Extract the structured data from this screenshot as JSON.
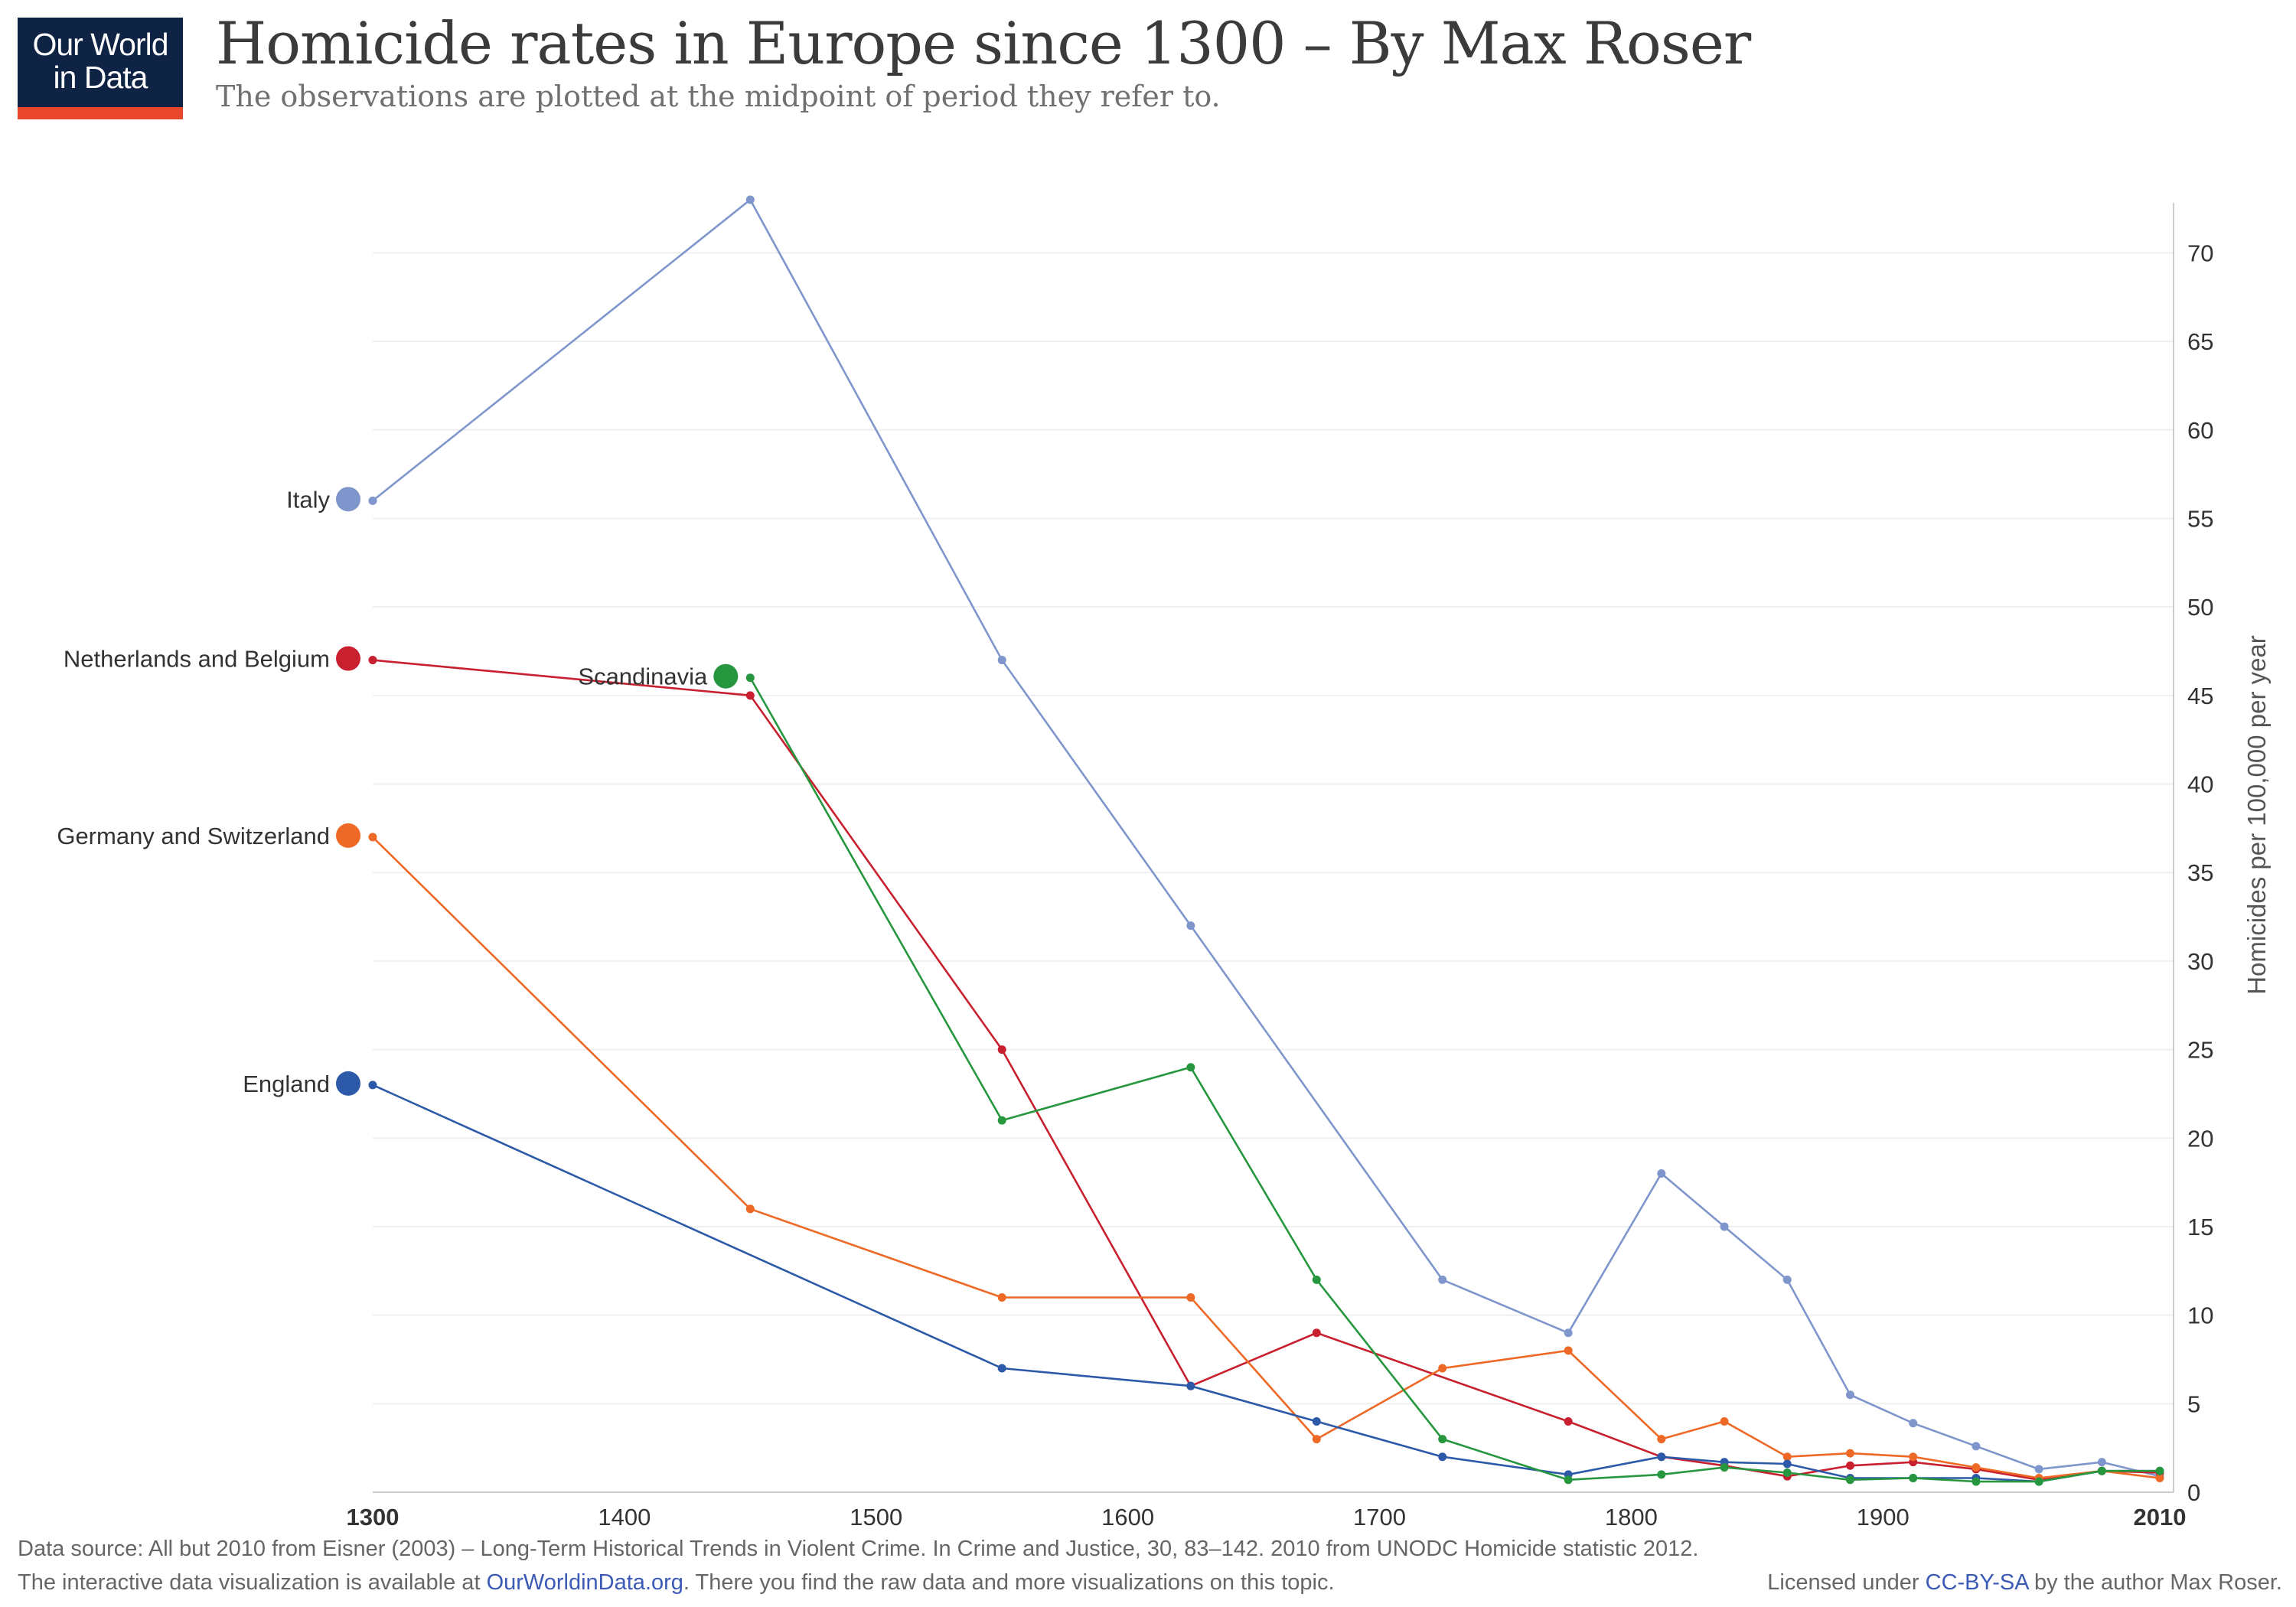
{
  "logo": {
    "line1": "Our World",
    "line2": "in Data"
  },
  "title": "Homicide rates in Europe since 1300 – By Max Roser",
  "subtitle": "The observations are plotted at the midpoint of period they refer to.",
  "footer": {
    "source": "Data source: All but 2010 from Eisner (2003) – Long-Term Historical Trends in Violent Crime. In Crime and Justice, 30, 83–142. 2010 from UNODC Homicide statistic 2012.",
    "line2_pre": "The interactive data visualization is available at ",
    "line2_link": "OurWorldinData.org",
    "line2_post": ". There you find the raw data and more visualizations on this topic.",
    "license_pre": "Licensed under ",
    "license_link": "CC-BY-SA",
    "license_post": " by the author Max Roser."
  },
  "chart_data": {
    "type": "line",
    "title": "Homicide rates in Europe since 1300 – By Max Roser",
    "ylabel": "Homicides per 100,000 per year",
    "xlabel": "",
    "xlim": [
      1300,
      2010
    ],
    "ylim": [
      0,
      73
    ],
    "x_ticks": [
      1300,
      1400,
      1500,
      1600,
      1700,
      1800,
      1900,
      2010
    ],
    "y_ticks": [
      0,
      5,
      10,
      15,
      20,
      25,
      30,
      35,
      40,
      45,
      50,
      55,
      60,
      65,
      70
    ],
    "grid": true,
    "legend": "left",
    "series": [
      {
        "name": "Italy",
        "color": "#7f96cc",
        "points": [
          [
            1300,
            56
          ],
          [
            1450,
            73
          ],
          [
            1550,
            47
          ],
          [
            1625,
            32
          ],
          [
            1725,
            12
          ],
          [
            1775,
            9
          ],
          [
            1812,
            18
          ],
          [
            1837,
            15
          ],
          [
            1862,
            12
          ],
          [
            1887,
            5.5
          ],
          [
            1912,
            3.9
          ],
          [
            1937,
            2.6
          ],
          [
            1962,
            1.3
          ],
          [
            1987,
            1.7
          ],
          [
            2010,
            0.9
          ]
        ]
      },
      {
        "name": "Netherlands and Belgium",
        "color": "#c8202e",
        "points": [
          [
            1300,
            47
          ],
          [
            1450,
            45
          ],
          [
            1550,
            25
          ],
          [
            1625,
            6
          ],
          [
            1675,
            9
          ],
          [
            1775,
            4
          ],
          [
            1812,
            2
          ],
          [
            1837,
            1.5
          ],
          [
            1862,
            0.9
          ],
          [
            1887,
            1.5
          ],
          [
            1912,
            1.7
          ],
          [
            1937,
            1.3
          ],
          [
            1962,
            0.7
          ],
          [
            1987,
            1.2
          ],
          [
            2010,
            1.1
          ]
        ]
      },
      {
        "name": "Germany and Switzerland",
        "color": "#ed6925",
        "points": [
          [
            1300,
            37
          ],
          [
            1450,
            16
          ],
          [
            1550,
            11
          ],
          [
            1625,
            11
          ],
          [
            1675,
            3
          ],
          [
            1725,
            7
          ],
          [
            1775,
            8
          ],
          [
            1812,
            3
          ],
          [
            1837,
            4
          ],
          [
            1862,
            2
          ],
          [
            1887,
            2.2
          ],
          [
            1912,
            2
          ],
          [
            1937,
            1.4
          ],
          [
            1962,
            0.8
          ],
          [
            1987,
            1.2
          ],
          [
            2010,
            0.8
          ]
        ]
      },
      {
        "name": "England",
        "color": "#2c5aa8",
        "points": [
          [
            1300,
            23
          ],
          [
            1550,
            7
          ],
          [
            1625,
            6
          ],
          [
            1675,
            4
          ],
          [
            1725,
            2
          ],
          [
            1775,
            1
          ],
          [
            1812,
            2
          ],
          [
            1837,
            1.7
          ],
          [
            1862,
            1.6
          ],
          [
            1887,
            0.8
          ],
          [
            1912,
            0.8
          ],
          [
            1937,
            0.8
          ],
          [
            1962,
            0.6
          ],
          [
            1987,
            1.2
          ],
          [
            2010,
            1.2
          ]
        ]
      },
      {
        "name": "Scandinavia",
        "color": "#27973f",
        "points": [
          [
            1450,
            46
          ],
          [
            1550,
            21
          ],
          [
            1625,
            24
          ],
          [
            1675,
            12
          ],
          [
            1725,
            3
          ],
          [
            1775,
            0.7
          ],
          [
            1812,
            1
          ],
          [
            1837,
            1.4
          ],
          [
            1862,
            1.1
          ],
          [
            1887,
            0.7
          ],
          [
            1912,
            0.8
          ],
          [
            1937,
            0.6
          ],
          [
            1962,
            0.6
          ],
          [
            1987,
            1.2
          ],
          [
            2010,
            1.2
          ]
        ]
      }
    ]
  }
}
